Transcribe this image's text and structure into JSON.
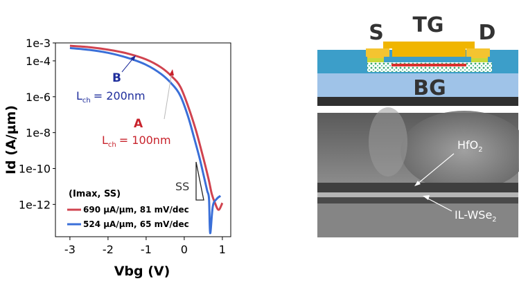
{
  "chart_data": {
    "type": "line",
    "xlabel": "Vbg (V)",
    "ylabel": "Id (A/µm)",
    "xlim": [
      -3,
      1
    ],
    "ylim_log10": [
      -13.8,
      -3
    ],
    "y_scale": "log",
    "x_ticks": [
      "-3",
      "-2",
      "-1",
      "0",
      "1"
    ],
    "x_tick_values": [
      -3,
      -2,
      -1,
      0,
      1
    ],
    "y_ticks": [
      "1e-3",
      "1e-4",
      "1e-6",
      "1e-8",
      "1e-10",
      "1e-12"
    ],
    "y_tick_values": [
      0.001,
      0.0001,
      1e-06,
      1e-08,
      1e-10,
      1e-12
    ],
    "legend_title": "(Imax, SS)",
    "legend_position": "bottom-left",
    "series": [
      {
        "name": "690 µA/µm, 81 mV/dec",
        "color": "#d0434f",
        "x": [
          -3,
          -2.5,
          -2,
          -1.5,
          -1,
          -0.6,
          -0.3,
          -0.1,
          0.1,
          0.3,
          0.45,
          0.55,
          0.65,
          0.72,
          0.8,
          0.9,
          1.0
        ],
        "y": [
          0.00069,
          0.00058,
          0.00042,
          0.00026,
          0.00012,
          4.2e-05,
          1.2e-05,
          3.5e-06,
          3e-07,
          1.5e-08,
          1e-09,
          1.5e-10,
          2e-11,
          4e-12,
          1.3e-12,
          5e-13,
          1.2e-12
        ]
      },
      {
        "name": "524 µA/µm, 65 mV/dec",
        "color": "#3a6fd8",
        "x": [
          -3,
          -2.5,
          -2,
          -1.5,
          -1,
          -0.6,
          -0.3,
          -0.1,
          0.1,
          0.25,
          0.4,
          0.5,
          0.6,
          0.65,
          0.68,
          0.75,
          0.85,
          0.95
        ],
        "y": [
          0.00052,
          0.00041,
          0.00028,
          0.00015,
          6e-05,
          1.8e-05,
          4.5e-06,
          1.1e-06,
          8e-08,
          6e-09,
          4e-10,
          5e-11,
          6e-12,
          2e-12,
          2.5e-14,
          8e-13,
          2e-12,
          3e-12
        ]
      }
    ],
    "annotations": [
      {
        "id": "A",
        "label": "A",
        "lch_prefix": "L",
        "lch_sub": "ch",
        "lch_value": "= 100nm",
        "color": "#c8232c"
      },
      {
        "id": "B",
        "label": "B",
        "lch_prefix": "L",
        "lch_sub": "ch",
        "lch_value": "= 200nm",
        "color": "#1f2e9c"
      },
      {
        "id": "SS",
        "label": "SS",
        "color": "#333333"
      }
    ]
  },
  "schematic": {
    "source_label": "S",
    "topgate_label": "TG",
    "drain_label": "D",
    "backgate_label": "BG"
  },
  "tem_image": {
    "label_hfo_main": "HfO",
    "label_hfo_sub": "2",
    "label_il_main": "IL-WSe",
    "label_il_sub": "2"
  }
}
